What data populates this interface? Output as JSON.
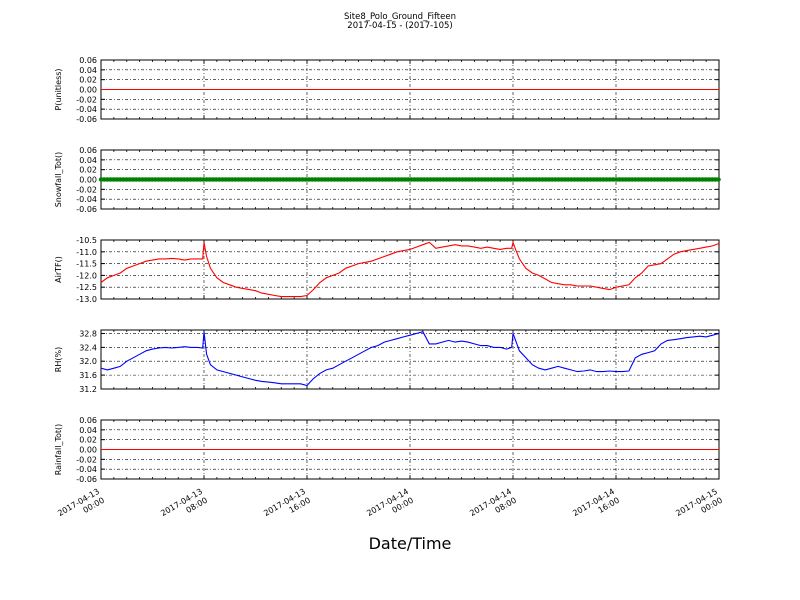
{
  "figure": {
    "title_line1": "Site8_Polo_Ground_Fifteen",
    "title_line2": "2017-04-15 - (2017-105)",
    "xlabel": "Date/Time"
  },
  "x_ticks": [
    [
      "2017-04-13",
      "00:00"
    ],
    [
      "2017-04-13",
      "08:00"
    ],
    [
      "2017-04-13",
      "16:00"
    ],
    [
      "2017-04-14",
      "00:00"
    ],
    [
      "2017-04-14",
      "08:00"
    ],
    [
      "2017-04-14",
      "16:00"
    ],
    [
      "2017-04-15",
      "00:00"
    ]
  ],
  "chart_data": [
    {
      "type": "line",
      "ylabel": "P(unitless)",
      "ylim": [
        -0.06,
        0.06
      ],
      "yticks": [
        "0.06",
        "0.04",
        "0.02",
        "0.00",
        "-0.02",
        "-0.04",
        "-0.06"
      ],
      "grid": true,
      "color": "#ff0000",
      "x_hours": [
        0,
        48
      ],
      "y": [
        0,
        0
      ]
    },
    {
      "type": "scatter",
      "ylabel": "Snowfall_Tot()",
      "ylim": [
        -0.06,
        0.06
      ],
      "yticks": [
        "0.06",
        "0.04",
        "0.02",
        "0.00",
        "-0.02",
        "-0.04",
        "-0.06"
      ],
      "grid": true,
      "color": "#008000",
      "x_hours": [
        0,
        48
      ],
      "y": [
        0,
        0
      ],
      "marker": "dense"
    },
    {
      "type": "line",
      "ylabel": "AirTF()",
      "ylim": [
        -13.0,
        -10.5
      ],
      "yticks": [
        "-10.5",
        "-11.0",
        "-11.5",
        "-12.0",
        "-12.5",
        "-13.0"
      ],
      "grid": true,
      "color": "#ff0000",
      "x_hours": [
        0,
        0.5,
        1,
        1.5,
        2,
        2.5,
        3,
        3.5,
        4,
        4.5,
        5,
        5.5,
        6,
        6.5,
        7,
        7.5,
        7.9,
        8.0,
        8.2,
        8.5,
        9,
        9.5,
        10,
        10.5,
        11,
        11.5,
        12,
        12.5,
        13,
        13.5,
        14,
        14.5,
        15,
        15.5,
        16,
        16.5,
        17,
        17.5,
        18,
        18.5,
        19,
        19.5,
        20,
        20.5,
        21,
        21.5,
        22,
        22.5,
        23,
        23.5,
        24,
        24.5,
        25,
        25.5,
        26,
        26.5,
        27,
        27.5,
        28,
        28.5,
        29,
        29.5,
        30,
        30.5,
        31,
        31.5,
        31.9,
        32.0,
        32.2,
        32.5,
        33,
        33.5,
        34,
        34.5,
        35,
        35.5,
        36,
        36.5,
        37,
        37.5,
        38,
        38.5,
        39,
        39.5,
        40,
        40.5,
        41,
        41.5,
        42,
        42.5,
        43,
        43.5,
        44,
        44.5,
        45,
        45.5,
        46,
        46.5,
        47,
        47.5,
        48
      ],
      "y": [
        -12.3,
        -12.1,
        -12.0,
        -11.9,
        -11.7,
        -11.6,
        -11.5,
        -11.4,
        -11.35,
        -11.3,
        -11.3,
        -11.28,
        -11.3,
        -11.35,
        -11.3,
        -11.3,
        -11.3,
        -10.6,
        -11.2,
        -11.7,
        -12.1,
        -12.3,
        -12.4,
        -12.5,
        -12.55,
        -12.6,
        -12.65,
        -12.75,
        -12.8,
        -12.85,
        -12.9,
        -12.9,
        -12.9,
        -12.9,
        -12.85,
        -12.6,
        -12.3,
        -12.1,
        -12.0,
        -11.9,
        -11.7,
        -11.6,
        -11.5,
        -11.45,
        -11.4,
        -11.3,
        -11.2,
        -11.1,
        -11.0,
        -10.95,
        -10.9,
        -10.8,
        -10.7,
        -10.6,
        -10.85,
        -10.8,
        -10.75,
        -10.7,
        -10.75,
        -10.75,
        -10.8,
        -10.85,
        -10.8,
        -10.85,
        -10.9,
        -10.85,
        -10.85,
        -10.6,
        -10.9,
        -11.3,
        -11.7,
        -11.9,
        -12.0,
        -12.15,
        -12.3,
        -12.35,
        -12.4,
        -12.4,
        -12.45,
        -12.45,
        -12.45,
        -12.5,
        -12.55,
        -12.6,
        -12.5,
        -12.45,
        -12.4,
        -12.1,
        -11.9,
        -11.6,
        -11.55,
        -11.5,
        -11.3,
        -11.1,
        -11.0,
        -10.95,
        -10.9,
        -10.85,
        -10.8,
        -10.75,
        -10.65
      ],
      "marker_size": "none"
    },
    {
      "type": "line",
      "ylabel": "RH(%)",
      "ylim": [
        31.2,
        32.9
      ],
      "yticks": [
        "32.8",
        "32.4",
        "32.0",
        "31.6",
        "31.2"
      ],
      "grid": true,
      "color": "#0000ff",
      "x_hours": [
        0,
        0.5,
        1,
        1.5,
        2,
        2.5,
        3,
        3.5,
        4,
        4.5,
        5,
        5.5,
        6,
        6.5,
        7,
        7.5,
        7.9,
        8.0,
        8.2,
        8.5,
        9,
        9.5,
        10,
        10.5,
        11,
        11.5,
        12,
        12.5,
        13,
        13.5,
        14,
        14.5,
        15,
        15.5,
        16,
        16.5,
        17,
        17.5,
        18,
        18.5,
        19,
        19.5,
        20,
        20.5,
        21,
        21.5,
        22,
        22.5,
        23,
        23.5,
        24,
        24.5,
        25,
        25.5,
        26,
        26.5,
        27,
        27.5,
        28,
        28.5,
        29,
        29.5,
        30,
        30.5,
        31,
        31.5,
        31.9,
        32.0,
        32.2,
        32.5,
        33,
        33.5,
        34,
        34.5,
        35,
        35.5,
        36,
        36.5,
        37,
        37.5,
        38,
        38.5,
        39,
        39.5,
        40,
        40.5,
        41,
        41.5,
        42,
        42.5,
        43,
        43.5,
        44,
        44.5,
        45,
        45.5,
        46,
        46.5,
        47,
        47.5,
        48
      ],
      "y": [
        31.8,
        31.75,
        31.8,
        31.85,
        32.0,
        32.1,
        32.2,
        32.3,
        32.35,
        32.38,
        32.4,
        32.38,
        32.4,
        32.42,
        32.4,
        32.4,
        32.38,
        32.85,
        32.2,
        31.9,
        31.75,
        31.7,
        31.65,
        31.6,
        31.55,
        31.5,
        31.45,
        31.42,
        31.4,
        31.38,
        31.35,
        31.35,
        31.35,
        31.35,
        31.3,
        31.5,
        31.65,
        31.75,
        31.8,
        31.9,
        32.0,
        32.1,
        32.2,
        32.3,
        32.4,
        32.45,
        32.55,
        32.6,
        32.65,
        32.7,
        32.75,
        32.8,
        32.85,
        32.5,
        32.5,
        32.55,
        32.6,
        32.55,
        32.58,
        32.55,
        32.5,
        32.45,
        32.45,
        32.4,
        32.4,
        32.35,
        32.4,
        32.8,
        32.6,
        32.3,
        32.1,
        31.9,
        31.8,
        31.75,
        31.8,
        31.85,
        31.8,
        31.75,
        31.7,
        31.72,
        31.75,
        31.7,
        31.7,
        31.72,
        31.7,
        31.7,
        31.72,
        32.1,
        32.2,
        32.25,
        32.3,
        32.5,
        32.6,
        32.62,
        32.65,
        32.68,
        32.7,
        32.72,
        32.7,
        32.75,
        32.8
      ],
      "marker_size": "none"
    },
    {
      "type": "line",
      "ylabel": "Rainfall_Tot()",
      "ylim": [
        -0.06,
        0.06
      ],
      "yticks": [
        "0.06",
        "0.04",
        "0.02",
        "0.00",
        "-0.02",
        "-0.04",
        "-0.06"
      ],
      "grid": true,
      "color": "#ff0000",
      "x_hours": [
        0,
        48
      ],
      "y": [
        0,
        0
      ]
    }
  ]
}
